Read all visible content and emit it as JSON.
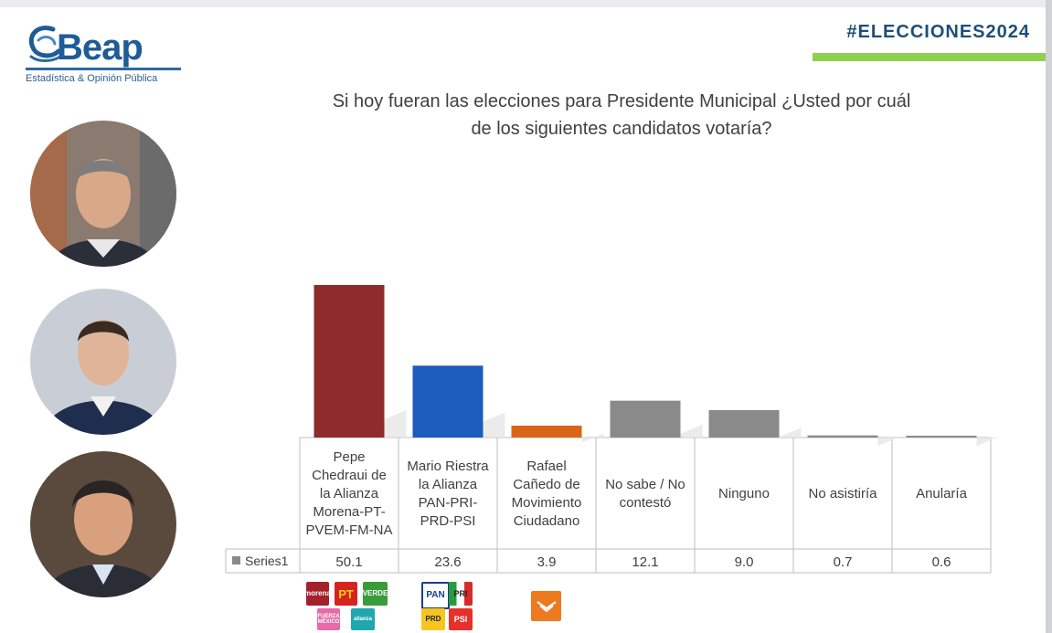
{
  "header": {
    "logo_text": "Beap",
    "logo_subtitle": "Estadística & Opinión Pública",
    "hashtag": "#ELECCIONES2024"
  },
  "question": {
    "line1": "Si hoy fueran las elecciones para Presidente Municipal ¿Usted por cuál",
    "line2": "de los siguientes candidatos votaría?"
  },
  "colors": {
    "bar_red": "#8e2b2b",
    "bar_blue": "#1d5bbd",
    "bar_orange": "#d9651a",
    "bar_gray": "#8a8a8a",
    "accent_green": "#8fd14f",
    "brand_blue": "#1f5c96"
  },
  "chart_data": {
    "type": "bar",
    "categories": [
      [
        "Pepe",
        "Chedraui de",
        "la Alianza",
        "Morena-PT-",
        "PVEM-FM-NA"
      ],
      [
        "Mario Riestra",
        "la Alianza",
        "PAN-PRI-",
        "PRD-PSI"
      ],
      [
        "Rafael",
        "Cañedo de",
        "Movimiento",
        "Ciudadano"
      ],
      [
        "No sabe / No",
        "contestó"
      ],
      [
        "Ninguno"
      ],
      [
        "No asistiría"
      ],
      [
        "Anularía"
      ]
    ],
    "series": [
      {
        "name": "Series1",
        "values": [
          50.1,
          23.6,
          3.9,
          12.1,
          9.0,
          0.7,
          0.6
        ],
        "value_labels": [
          "50.1",
          "23.6",
          "3.9",
          "12.1",
          "9.0",
          "0.7",
          "0.6"
        ],
        "colors": [
          "#8e2b2b",
          "#1d5bbd",
          "#d9651a",
          "#8a8a8a",
          "#8a8a8a",
          "#8a8a8a",
          "#8a8a8a"
        ]
      }
    ],
    "ylim": [
      0,
      50.1
    ],
    "grid": false,
    "legend": "data-table"
  },
  "party_logos": {
    "group1": [
      "morena",
      "PT",
      "VERDE",
      "FUERZA MÉXICO",
      "nueva alianza"
    ],
    "group2": [
      "PAN",
      "PRI",
      "PRD",
      "PSI"
    ],
    "group3": [
      "movimiento-ciudadano"
    ]
  }
}
